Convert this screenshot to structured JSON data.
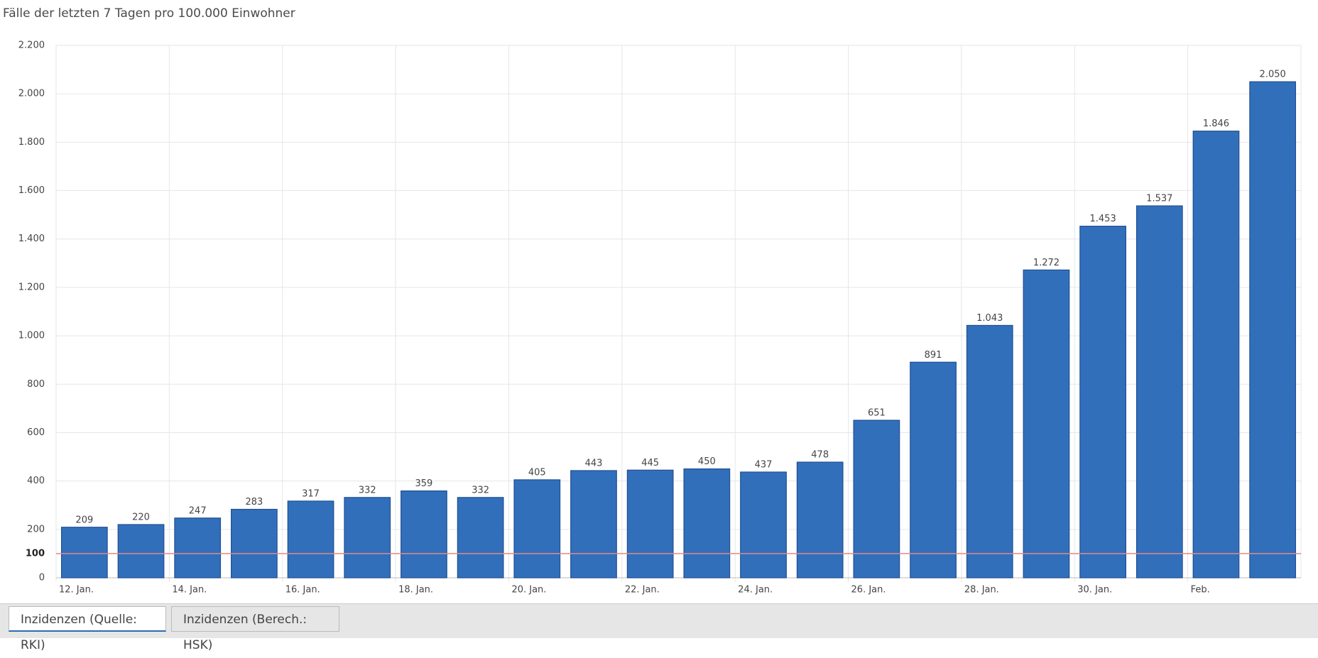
{
  "chart_data": {
    "type": "bar",
    "title": "Fälle der letzten 7 Tagen pro 100.000 Einwohner",
    "categories": [
      "12. Jan.",
      null,
      "14. Jan.",
      null,
      "16. Jan.",
      null,
      "18. Jan.",
      null,
      "20. Jan.",
      null,
      "22. Jan.",
      null,
      "24. Jan.",
      null,
      "26. Jan.",
      null,
      "28. Jan.",
      null,
      "30. Jan.",
      null,
      "Feb.",
      null
    ],
    "values": [
      209,
      220,
      247,
      283,
      317,
      332,
      359,
      332,
      405,
      443,
      445,
      450,
      437,
      478,
      651,
      891,
      1043,
      1272,
      1453,
      1537,
      1846,
      2050
    ],
    "value_labels": [
      "209",
      "220",
      "247",
      "283",
      "317",
      "332",
      "359",
      "332",
      "405",
      "443",
      "445",
      "450",
      "437",
      "478",
      "651",
      "891",
      "1.043",
      "1.272",
      "1.453",
      "1.537",
      "1.846",
      "2.050"
    ],
    "color": "#326fbb",
    "ylim": [
      0,
      2200
    ],
    "yticks": [
      0,
      200,
      400,
      600,
      800,
      {
        "value": 1000,
        "label": "1.000"
      },
      {
        "value": 1200,
        "label": "1.200"
      },
      {
        "value": 1400,
        "label": "1.400"
      },
      {
        "value": 1600,
        "label": "1.600"
      },
      {
        "value": 1800,
        "label": "1.800"
      },
      {
        "value": 2000,
        "label": "2.000"
      },
      {
        "value": 2200,
        "label": "2.200"
      }
    ],
    "reference_line": {
      "value": 100,
      "color": "#e08a8a"
    },
    "grid": true
  },
  "tabs": [
    "Inzidenzen (Quelle: RKI)",
    "Inzidenzen (Berech.: HSK)"
  ]
}
